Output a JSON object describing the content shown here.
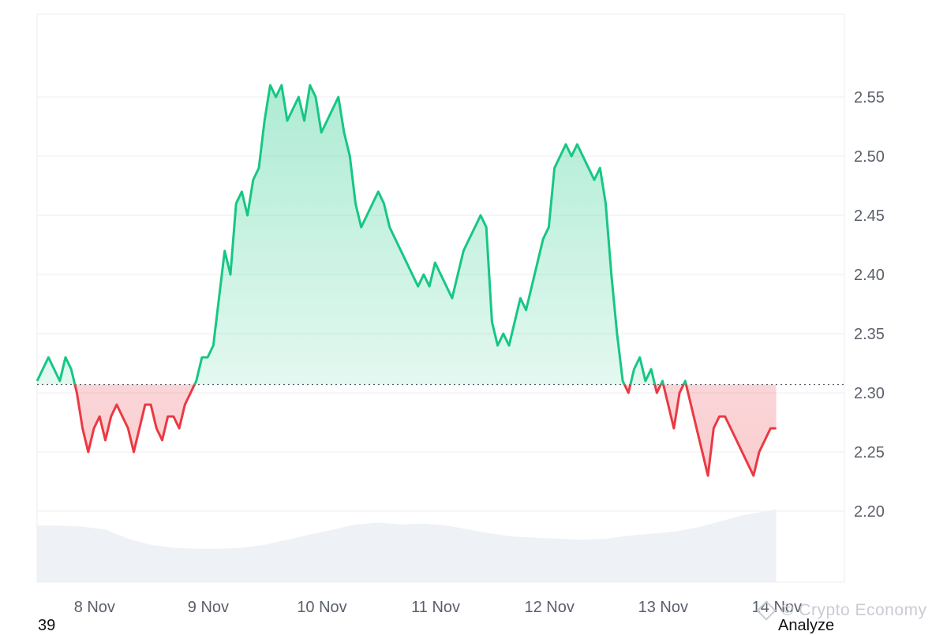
{
  "chart_data": {
    "type": "line",
    "baseline": 2.307,
    "ylim": [
      2.14,
      2.62
    ],
    "y_ticks": [
      2.2,
      2.25,
      2.3,
      2.35,
      2.4,
      2.45,
      2.5,
      2.55
    ],
    "y_tick_labels": [
      "2.20",
      "2.25",
      "2.30",
      "2.35",
      "2.40",
      "2.45",
      "2.50",
      "2.55"
    ],
    "xlim": [
      7.8,
      14.4
    ],
    "x_tick_labels": [
      "8 Nov",
      "9 Nov",
      "10 Nov",
      "11 Nov",
      "12 Nov",
      "13 Nov",
      "14 Nov"
    ],
    "x_tick_values": [
      8,
      9,
      10,
      11,
      12,
      13,
      14
    ],
    "grid": true,
    "colors": {
      "up": "#16c784",
      "down": "#ea3943",
      "volume": "#eef1f5",
      "grid": "#eceef2"
    },
    "series": [
      {
        "values_x": [
          7.8,
          7.85,
          7.9,
          7.95,
          8.0,
          8.05,
          8.1,
          8.15,
          8.2,
          8.25,
          8.3,
          8.35,
          8.4,
          8.45,
          8.5,
          8.55,
          8.6,
          8.65,
          8.7,
          8.75,
          8.8,
          8.85,
          8.9,
          8.95,
          9.0,
          9.05,
          9.1,
          9.15,
          9.2,
          9.25,
          9.3,
          9.35,
          9.4,
          9.45,
          9.5,
          9.55,
          9.6,
          9.65,
          9.7,
          9.75,
          9.8,
          9.85,
          9.9,
          9.95,
          10.0,
          10.05,
          10.1,
          10.15,
          10.2,
          10.25,
          10.3,
          10.35,
          10.4,
          10.45,
          10.5,
          10.55,
          10.6,
          10.65,
          10.7,
          10.75,
          10.8,
          10.85,
          10.9,
          10.95,
          11.0,
          11.05,
          11.1,
          11.15,
          11.2,
          11.25,
          11.3,
          11.35,
          11.4,
          11.45,
          11.5,
          11.55,
          11.6,
          11.65,
          11.7,
          11.75,
          11.8,
          11.85,
          11.9,
          11.95,
          12.0,
          12.05,
          12.1,
          12.15,
          12.2,
          12.25,
          12.3,
          12.35,
          12.4,
          12.45,
          12.5,
          12.55,
          12.6,
          12.65,
          12.7,
          12.75,
          12.8,
          12.85,
          12.9,
          12.95,
          13.0,
          13.05,
          13.1,
          13.15,
          13.2,
          13.25,
          13.3,
          13.35,
          13.4,
          13.45,
          13.5,
          13.55,
          13.6,
          13.65,
          13.7,
          13.75,
          13.8,
          13.85,
          13.9,
          13.95,
          14.0,
          14.05,
          14.1,
          14.15,
          14.2,
          14.25,
          14.3
        ],
        "values_y": [
          2.31,
          2.32,
          2.33,
          2.32,
          2.31,
          2.33,
          2.32,
          2.3,
          2.27,
          2.25,
          2.27,
          2.28,
          2.26,
          2.28,
          2.29,
          2.28,
          2.27,
          2.25,
          2.27,
          2.29,
          2.29,
          2.27,
          2.26,
          2.28,
          2.28,
          2.27,
          2.29,
          2.3,
          2.31,
          2.33,
          2.33,
          2.34,
          2.38,
          2.42,
          2.4,
          2.46,
          2.47,
          2.45,
          2.48,
          2.49,
          2.53,
          2.56,
          2.55,
          2.56,
          2.53,
          2.54,
          2.55,
          2.53,
          2.56,
          2.55,
          2.52,
          2.53,
          2.54,
          2.55,
          2.52,
          2.5,
          2.46,
          2.44,
          2.45,
          2.46,
          2.47,
          2.46,
          2.44,
          2.43,
          2.42,
          2.41,
          2.4,
          2.39,
          2.4,
          2.39,
          2.41,
          2.4,
          2.39,
          2.38,
          2.4,
          2.42,
          2.43,
          2.44,
          2.45,
          2.44,
          2.36,
          2.34,
          2.35,
          2.34,
          2.36,
          2.38,
          2.37,
          2.39,
          2.41,
          2.43,
          2.44,
          2.49,
          2.5,
          2.51,
          2.5,
          2.51,
          2.5,
          2.49,
          2.48,
          2.49,
          2.46,
          2.4,
          2.35,
          2.31,
          2.3,
          2.32,
          2.33,
          2.31,
          2.32,
          2.3,
          2.31,
          2.29,
          2.27,
          2.3,
          2.31,
          2.29,
          2.27,
          2.25,
          2.23,
          2.27,
          2.28,
          2.28,
          2.27,
          2.26,
          2.25,
          2.24,
          2.23,
          2.25,
          2.26,
          2.27,
          2.27
        ]
      }
    ],
    "volume": {
      "values_x": [
        7.8,
        8.0,
        8.2,
        8.4,
        8.6,
        8.8,
        9.0,
        9.2,
        9.4,
        9.6,
        9.8,
        10.0,
        10.2,
        10.4,
        10.6,
        10.8,
        11.0,
        11.2,
        11.4,
        11.6,
        11.8,
        12.0,
        12.2,
        12.4,
        12.6,
        12.8,
        13.0,
        13.2,
        13.4,
        13.6,
        13.8,
        14.0,
        14.2,
        14.3
      ],
      "values": [
        0.56,
        0.56,
        0.55,
        0.52,
        0.43,
        0.37,
        0.34,
        0.33,
        0.33,
        0.34,
        0.37,
        0.42,
        0.47,
        0.52,
        0.57,
        0.59,
        0.57,
        0.58,
        0.56,
        0.52,
        0.48,
        0.45,
        0.44,
        0.43,
        0.42,
        0.43,
        0.46,
        0.48,
        0.5,
        0.54,
        0.6,
        0.66,
        0.7,
        0.72
      ]
    }
  },
  "watermark": {
    "text": "© Crypto Economy"
  },
  "bottom": {
    "left": "39",
    "right": "Analyze"
  }
}
